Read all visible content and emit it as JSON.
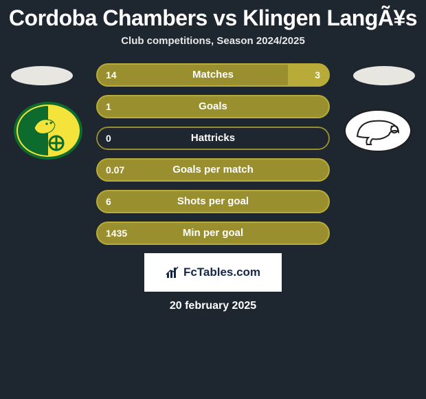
{
  "title": "Cordoba Chambers vs Klingen LangÃ¥s",
  "subtitle": "Club competitions, Season 2024/2025",
  "date": "20 february 2025",
  "footer_brand": "FcTables.com",
  "colors": {
    "background": "#1e2630",
    "left_primary": "#9a8f2e",
    "left_primary_border": "#b8ab3a",
    "right_primary": "#b8ab3a",
    "text": "#ffffff",
    "footer_bg": "#ffffff",
    "footer_text": "#152648",
    "ellipse": "#e8e6e0"
  },
  "stats": [
    {
      "label": "Matches",
      "left_value": "14",
      "right_value": "3",
      "left_pct": 82,
      "right_pct": 18,
      "left_fill": "#9a8f2e",
      "right_fill": "#b8ab3a",
      "border": "#b8ab3a",
      "show_right": true
    },
    {
      "label": "Goals",
      "left_value": "1",
      "right_value": "",
      "left_pct": 100,
      "right_pct": 0,
      "left_fill": "#9a8f2e",
      "right_fill": "#b8ab3a",
      "border": "#b8ab3a",
      "show_right": false
    },
    {
      "label": "Hattricks",
      "left_value": "0",
      "right_value": "",
      "left_pct": 0,
      "right_pct": 0,
      "left_fill": "#9a8f2e",
      "right_fill": "#b8ab3a",
      "border": "#9a8f2e",
      "show_right": false
    },
    {
      "label": "Goals per match",
      "left_value": "0.07",
      "right_value": "",
      "left_pct": 100,
      "right_pct": 0,
      "left_fill": "#9a8f2e",
      "right_fill": "#b8ab3a",
      "border": "#b8ab3a",
      "show_right": false
    },
    {
      "label": "Shots per goal",
      "left_value": "6",
      "right_value": "",
      "left_pct": 100,
      "right_pct": 0,
      "left_fill": "#9a8f2e",
      "right_fill": "#b8ab3a",
      "border": "#b8ab3a",
      "show_right": false
    },
    {
      "label": "Min per goal",
      "left_value": "1435",
      "right_value": "",
      "left_pct": 100,
      "right_pct": 0,
      "left_fill": "#9a8f2e",
      "right_fill": "#b8ab3a",
      "border": "#b8ab3a",
      "show_right": false
    }
  ],
  "logos": {
    "left": {
      "name": "norwich-crest",
      "bg": "#f3e33b",
      "accent": "#0c6b2d"
    },
    "right": {
      "name": "derby-ram-crest",
      "bg": "#ffffff",
      "accent": "#1e1e1e"
    }
  }
}
